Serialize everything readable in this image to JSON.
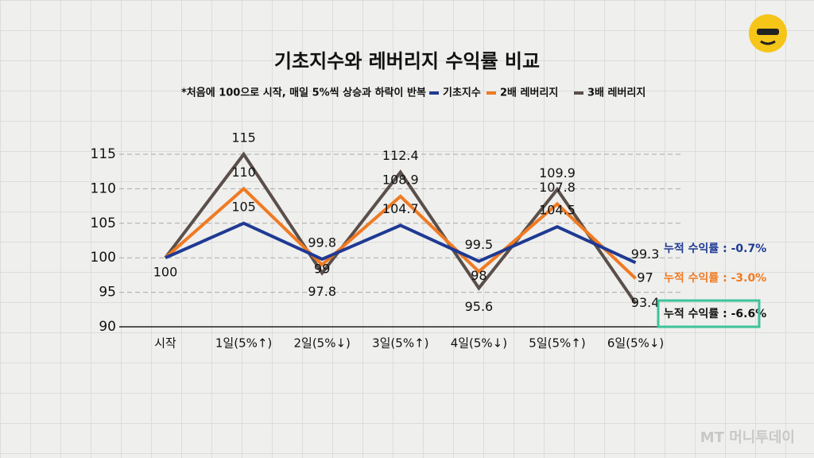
{
  "chart_data": {
    "type": "line",
    "title": "기초지수와 레버리지 수익률 비교",
    "subtitle": "*처음에 100으로 시작, 매일 5%씩 상승과 하락이 반복",
    "categories": [
      "시작",
      "1일(5%↑)",
      "2일(5%↓)",
      "3일(5%↑)",
      "4일(5%↓)",
      "5일(5%↑)",
      "6일(5%↓)"
    ],
    "series": [
      {
        "name": "기초지수",
        "color": "#1f3a93",
        "values": [
          100,
          105,
          99.8,
          104.7,
          99.5,
          104.5,
          99.3
        ],
        "annotation": "누적 수익률 : -0.7%"
      },
      {
        "name": "2배 레버리지",
        "color": "#f07a22",
        "values": [
          100,
          110,
          99,
          108.9,
          98,
          107.8,
          97
        ],
        "annotation": "누적 수익률 : -3.0%"
      },
      {
        "name": "3배 레버리지",
        "color": "#5a4f4a",
        "values": [
          100,
          115,
          97.8,
          112.4,
          95.6,
          109.9,
          93.4
        ],
        "annotation": "누적 수익률 : -6.6%"
      }
    ],
    "ylim": [
      90,
      115
    ],
    "yticks": [
      90,
      95,
      100,
      105,
      110,
      115
    ],
    "grid": true,
    "watermark": "MT 머니투데이"
  }
}
